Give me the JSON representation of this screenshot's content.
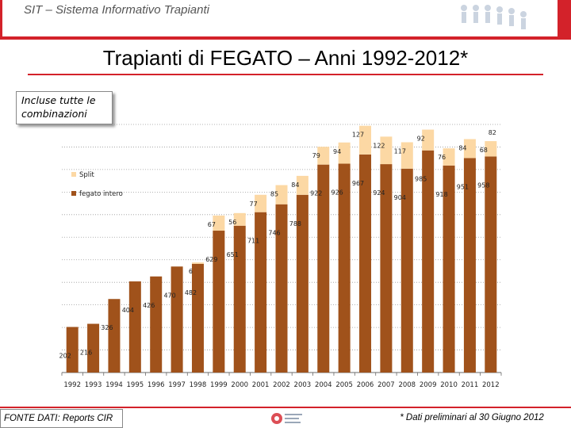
{
  "header": {
    "title": "SIT – Sistema Informativo Trapianti",
    "logo_icon": "people-chain-icon",
    "accent": "#d3222a"
  },
  "page_title": "Trapianti di FEGATO – Anni 1992-2012*",
  "note": "Incluse tutte le combinazioni",
  "footer": {
    "source": "FONTE DATI: Reports CIR",
    "note": "* Dati preliminari al 30 Giugno 2012",
    "logo_icon": "centro-nazionale-trapianti-logo-icon"
  },
  "chart_data": {
    "type": "bar",
    "stacked": true,
    "categories": [
      "1992",
      "1993",
      "1994",
      "1995",
      "1996",
      "1997",
      "1998",
      "1999",
      "2000",
      "2001",
      "2002",
      "2003",
      "2004",
      "2005",
      "2006",
      "2007",
      "2008",
      "2009",
      "2010",
      "2011",
      "2012"
    ],
    "series": [
      {
        "name": "fegato intero",
        "color": "#a0521b",
        "values": [
          202,
          216,
          326,
          404,
          426,
          470,
          482,
          629,
          651,
          711,
          746,
          788,
          922,
          926,
          967,
          924,
          904,
          985,
          918,
          951,
          958
        ],
        "labels": [
          "202",
          "216",
          "326",
          "404",
          "426",
          "470",
          "482",
          "629",
          "651",
          "711",
          "746",
          "788",
          "922",
          "926",
          "967",
          "924",
          "904",
          "985",
          "918",
          "951",
          "958"
        ]
      },
      {
        "name": "Split",
        "color": "#fcd8a4",
        "values": [
          0,
          0,
          0,
          0,
          0,
          0,
          6,
          67,
          56,
          77,
          85,
          84,
          79,
          94,
          127,
          122,
          117,
          92,
          76,
          84,
          68
        ],
        "labels": [
          "",
          "",
          "",
          "",
          "",
          "",
          "6",
          "67",
          "56",
          "77",
          "85",
          "84",
          "79",
          "94",
          "127",
          "122",
          "117",
          "92",
          "76",
          "84",
          "68"
        ]
      }
    ],
    "extra_labels": [
      "82"
    ],
    "ylim": [
      0,
      1100
    ],
    "grid": true,
    "legend": "top-left"
  }
}
